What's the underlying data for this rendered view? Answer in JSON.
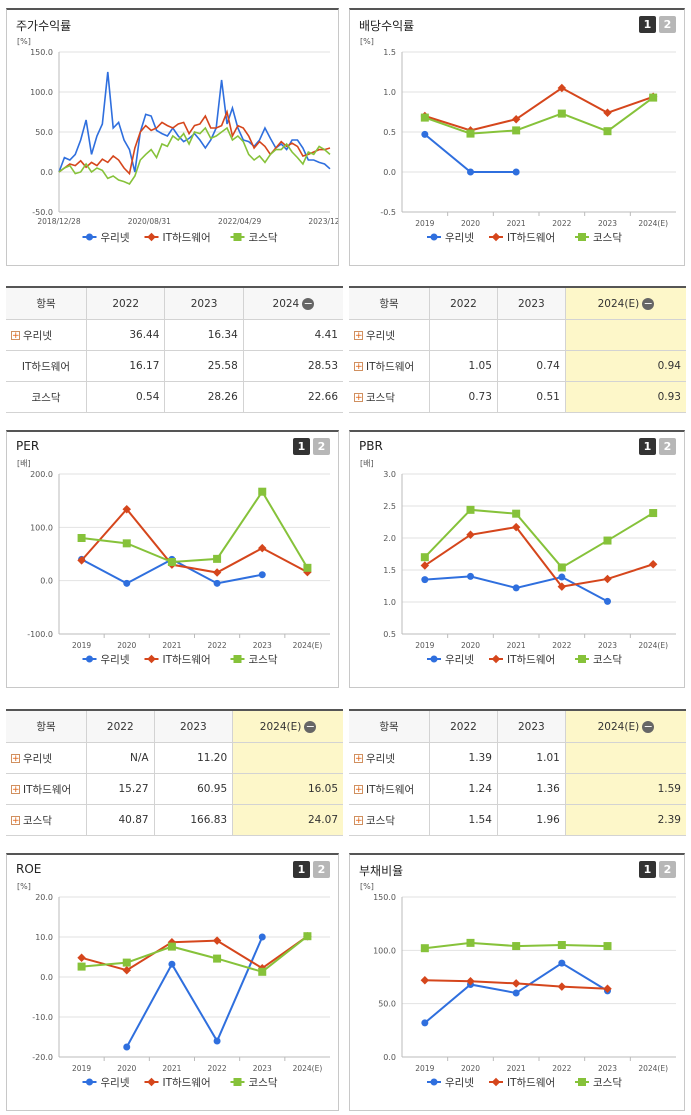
{
  "panels": {
    "stock": {
      "title": "주가수익률"
    },
    "dividend": {
      "title": "배당수익률",
      "btn1": "1",
      "btn2": "2"
    },
    "per": {
      "title": "PER",
      "btn1": "1",
      "btn2": "2"
    },
    "pbr": {
      "title": "PBR",
      "btn1": "1",
      "btn2": "2"
    },
    "roe": {
      "title": "ROE",
      "btn1": "1",
      "btn2": "2"
    },
    "debt": {
      "title": "부채비율",
      "btn1": "1",
      "btn2": "2"
    }
  },
  "colors": {
    "s1": "#2f6fde",
    "s2": "#d5461c",
    "s3": "#86c23a"
  },
  "legend": [
    "우리넷",
    "IT하드웨어",
    "코스닥"
  ],
  "chart_data": [
    {
      "id": "stock",
      "type": "line",
      "unit": "[%]",
      "x_ticks": [
        "2018/12/28",
        "2020/08/31",
        "2022/04/29",
        "2023/12/28"
      ],
      "y_ticks": [
        "150.0",
        "100.0",
        "50.0",
        "0.0",
        "-50.0"
      ],
      "ylim": [
        -50,
        150
      ],
      "series": [
        {
          "name": "우리넷",
          "values": [
            0,
            18,
            15,
            22,
            40,
            65,
            22,
            45,
            60,
            125,
            55,
            62,
            40,
            28,
            0,
            50,
            72,
            70,
            52,
            48,
            45,
            55,
            45,
            38,
            42,
            48,
            40,
            30,
            40,
            55,
            115,
            60,
            80,
            55,
            40,
            38,
            32,
            40,
            55,
            42,
            30,
            35,
            28,
            40,
            40,
            30,
            15,
            15,
            12,
            10,
            4
          ]
        },
        {
          "name": "IT하드웨어",
          "values": [
            0,
            5,
            10,
            8,
            14,
            6,
            12,
            8,
            16,
            12,
            20,
            15,
            5,
            -2,
            30,
            50,
            58,
            52,
            55,
            62,
            58,
            55,
            60,
            62,
            48,
            58,
            60,
            70,
            55,
            55,
            58,
            75,
            45,
            58,
            55,
            45,
            30,
            38,
            32,
            22,
            30,
            38,
            32,
            36,
            32,
            20,
            22,
            25,
            28,
            28,
            30
          ]
        },
        {
          "name": "코스닥",
          "values": [
            0,
            5,
            8,
            -2,
            0,
            10,
            0,
            5,
            2,
            -8,
            -5,
            -10,
            -12,
            -15,
            -5,
            15,
            22,
            28,
            18,
            35,
            32,
            45,
            40,
            48,
            35,
            50,
            48,
            55,
            42,
            45,
            50,
            55,
            40,
            45,
            38,
            22,
            15,
            20,
            12,
            22,
            28,
            28,
            35,
            25,
            18,
            10,
            25,
            22,
            32,
            28,
            22
          ]
        }
      ]
    },
    {
      "id": "dividend",
      "type": "line",
      "unit": "[%]",
      "x": [
        "2019",
        "2020",
        "2021",
        "2022",
        "2023",
        "2024(E)"
      ],
      "y_ticks": [
        "1.5",
        "1.0",
        "0.5",
        "0.0",
        "-0.5"
      ],
      "ylim": [
        -0.5,
        1.5
      ],
      "series": [
        {
          "name": "우리넷",
          "values": [
            0.47,
            0.0,
            0.0,
            null,
            null,
            null
          ]
        },
        {
          "name": "IT하드웨어",
          "values": [
            0.7,
            0.52,
            0.66,
            1.05,
            0.74,
            0.94
          ]
        },
        {
          "name": "코스닥",
          "values": [
            0.68,
            0.48,
            0.52,
            0.73,
            0.51,
            0.93
          ]
        }
      ]
    },
    {
      "id": "per",
      "type": "line",
      "unit": "[배]",
      "x": [
        "2019",
        "2020",
        "2021",
        "2022",
        "2023",
        "2024(E)"
      ],
      "y_ticks": [
        "200.0",
        "100.0",
        "0.0",
        "-100.0"
      ],
      "ylim": [
        -100,
        200
      ],
      "series": [
        {
          "name": "우리넷",
          "values": [
            40,
            -5,
            40,
            -5,
            11.2,
            null
          ]
        },
        {
          "name": "IT하드웨어",
          "values": [
            38,
            134,
            30,
            15.27,
            60.95,
            16.05
          ]
        },
        {
          "name": "코스닥",
          "values": [
            80,
            70,
            35,
            40.87,
            166.83,
            24.07
          ]
        }
      ]
    },
    {
      "id": "pbr",
      "type": "line",
      "unit": "[배]",
      "x": [
        "2019",
        "2020",
        "2021",
        "2022",
        "2023",
        "2024(E)"
      ],
      "y_ticks": [
        "3.0",
        "2.5",
        "2.0",
        "1.5",
        "1.0",
        "0.5"
      ],
      "ylim": [
        0.5,
        3.0
      ],
      "series": [
        {
          "name": "우리넷",
          "values": [
            1.35,
            1.4,
            1.22,
            1.39,
            1.01,
            null
          ]
        },
        {
          "name": "IT하드웨어",
          "values": [
            1.57,
            2.05,
            2.17,
            1.24,
            1.36,
            1.59
          ]
        },
        {
          "name": "코스닥",
          "values": [
            1.7,
            2.44,
            2.38,
            1.54,
            1.96,
            2.39
          ]
        }
      ]
    },
    {
      "id": "roe",
      "type": "line",
      "unit": "[%]",
      "x": [
        "2019",
        "2020",
        "2021",
        "2022",
        "2023",
        "2024(E)"
      ],
      "y_ticks": [
        "20.0",
        "10.0",
        "0.0",
        "-10.0",
        "-20.0"
      ],
      "ylim": [
        -20,
        20
      ],
      "series": [
        {
          "name": "우리넷",
          "values": [
            null,
            -17.5,
            3.2,
            -16,
            10,
            null
          ]
        },
        {
          "name": "IT하드웨어",
          "values": [
            4.8,
            1.7,
            8.7,
            9.1,
            2.2,
            10.2
          ]
        },
        {
          "name": "코스닥",
          "values": [
            2.6,
            3.6,
            7.6,
            4.6,
            1.3,
            10.2
          ]
        }
      ]
    },
    {
      "id": "debt",
      "type": "line",
      "unit": "[%]",
      "x": [
        "2019",
        "2020",
        "2021",
        "2022",
        "2023",
        "2024(E)"
      ],
      "y_ticks": [
        "150.0",
        "100.0",
        "50.0",
        "0.0"
      ],
      "ylim": [
        0,
        150
      ],
      "series": [
        {
          "name": "우리넷",
          "values": [
            32,
            68,
            60,
            88,
            62,
            null
          ]
        },
        {
          "name": "IT하드웨어",
          "values": [
            72,
            71,
            69,
            66,
            64,
            null
          ]
        },
        {
          "name": "코스닥",
          "values": [
            102,
            107,
            104,
            105,
            104,
            null
          ]
        }
      ]
    }
  ],
  "tables": {
    "stock": {
      "headers": [
        "항목",
        "2022",
        "2023",
        "2024"
      ],
      "rows": [
        {
          "label": "우리넷",
          "plus": true,
          "values": [
            "36.44",
            "16.34",
            "4.41"
          ]
        },
        {
          "label": "IT하드웨어",
          "plus": false,
          "values": [
            "16.17",
            "25.58",
            "28.53"
          ]
        },
        {
          "label": "코스닥",
          "plus": false,
          "values": [
            "0.54",
            "28.26",
            "22.66"
          ]
        }
      ]
    },
    "dividend": {
      "headers": [
        "항목",
        "2022",
        "2023",
        "2024(E)"
      ],
      "rows": [
        {
          "label": "우리넷",
          "plus": true,
          "values": [
            "",
            "",
            ""
          ]
        },
        {
          "label": "IT하드웨어",
          "plus": true,
          "values": [
            "1.05",
            "0.74",
            "0.94"
          ]
        },
        {
          "label": "코스닥",
          "plus": true,
          "values": [
            "0.73",
            "0.51",
            "0.93"
          ]
        }
      ]
    },
    "per": {
      "headers": [
        "항목",
        "2022",
        "2023",
        "2024(E)"
      ],
      "rows": [
        {
          "label": "우리넷",
          "plus": true,
          "values": [
            "N/A",
            "11.20",
            ""
          ]
        },
        {
          "label": "IT하드웨어",
          "plus": true,
          "values": [
            "15.27",
            "60.95",
            "16.05"
          ]
        },
        {
          "label": "코스닥",
          "plus": true,
          "values": [
            "40.87",
            "166.83",
            "24.07"
          ]
        }
      ]
    },
    "pbr": {
      "headers": [
        "항목",
        "2022",
        "2023",
        "2024(E)"
      ],
      "rows": [
        {
          "label": "우리넷",
          "plus": true,
          "values": [
            "1.39",
            "1.01",
            ""
          ]
        },
        {
          "label": "IT하드웨어",
          "plus": true,
          "values": [
            "1.24",
            "1.36",
            "1.59"
          ]
        },
        {
          "label": "코스닥",
          "plus": true,
          "values": [
            "1.54",
            "1.96",
            "2.39"
          ]
        }
      ]
    }
  }
}
